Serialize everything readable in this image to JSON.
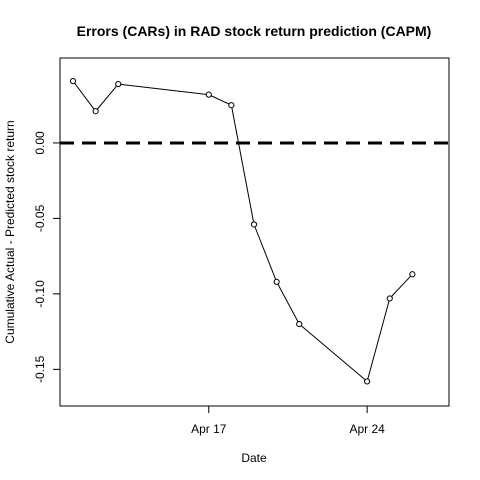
{
  "chart_data": {
    "type": "line",
    "title": "Errors (CARs) in RAD stock return prediction (CAPM)",
    "xlabel": "Date",
    "ylabel": "Cumulative Actual - Predicted stock return",
    "x_axis_type": "date",
    "xlim": [
      "2024-04-11",
      "2024-04-27"
    ],
    "ylim": [
      -0.165,
      0.047
    ],
    "x_ticks": [
      {
        "date": "2024-04-17",
        "label": "Apr 17"
      },
      {
        "date": "2024-04-24",
        "label": "Apr 24"
      }
    ],
    "y_ticks": [
      {
        "value": 0.0,
        "label": "0.00"
      },
      {
        "value": -0.05,
        "label": "-0.05"
      },
      {
        "value": -0.1,
        "label": "-0.10"
      },
      {
        "value": -0.15,
        "label": "-0.15"
      }
    ],
    "reference_line": {
      "y": 0,
      "style": "dashed",
      "color": "#000000"
    },
    "series": [
      {
        "points": [
          {
            "x": "2024-04-11",
            "y": 0.041
          },
          {
            "x": "2024-04-12",
            "y": 0.021
          },
          {
            "x": "2024-04-13",
            "y": 0.039
          },
          {
            "x": "2024-04-17",
            "y": 0.032
          },
          {
            "x": "2024-04-18",
            "y": 0.025
          },
          {
            "x": "2024-04-19",
            "y": -0.054
          },
          {
            "x": "2024-04-20",
            "y": -0.092
          },
          {
            "x": "2024-04-21",
            "y": -0.12
          },
          {
            "x": "2024-04-24",
            "y": -0.158
          },
          {
            "x": "2024-04-25",
            "y": -0.103
          },
          {
            "x": "2024-04-26",
            "y": -0.087
          }
        ]
      }
    ],
    "colors": {
      "line": "#000000",
      "marker_fill": "#ffffff",
      "axes": "#000000"
    },
    "grid": false,
    "markers": "open-circle"
  }
}
